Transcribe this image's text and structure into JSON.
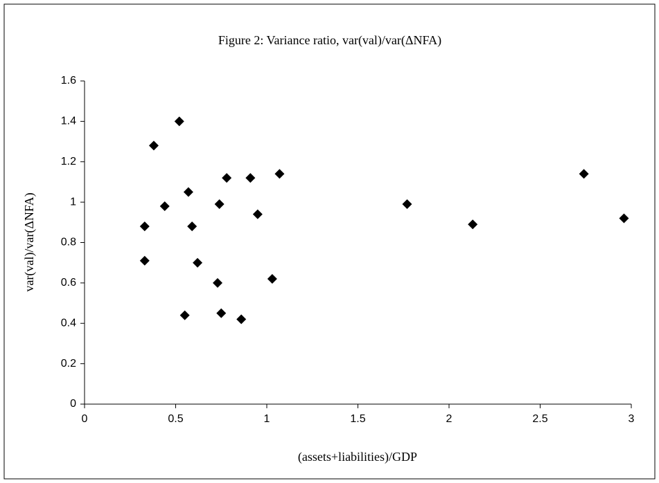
{
  "chart_data": {
    "type": "scatter",
    "title": "Figure 2: Variance ratio, var(val)/var(ΔNFA)",
    "x_label": "(assets+liabilities)/GDP",
    "y_label": "var(val)/var(ΔNFA)",
    "color": "#000000",
    "x": [
      0.33,
      0.33,
      0.38,
      0.44,
      0.52,
      0.55,
      0.57,
      0.59,
      0.62,
      0.73,
      0.74,
      0.75,
      0.78,
      0.86,
      0.91,
      0.95,
      1.03,
      1.07,
      1.77,
      2.13,
      2.74,
      2.96
    ],
    "values": [
      0.88,
      0.71,
      1.28,
      0.98,
      1.4,
      0.44,
      1.05,
      0.88,
      0.7,
      0.6,
      0.99,
      0.45,
      1.12,
      0.42,
      1.12,
      0.94,
      0.62,
      1.14,
      0.99,
      0.89,
      1.14,
      0.92
    ],
    "xlim": [
      0,
      3
    ],
    "xticks": [
      0,
      0.5,
      1,
      1.5,
      2,
      2.5,
      3
    ],
    "ylim": [
      0,
      1.6
    ],
    "yticks": [
      0,
      0.2,
      0.4,
      0.6,
      0.8,
      1,
      1.2,
      1.4,
      1.6
    ],
    "grid": false
  }
}
